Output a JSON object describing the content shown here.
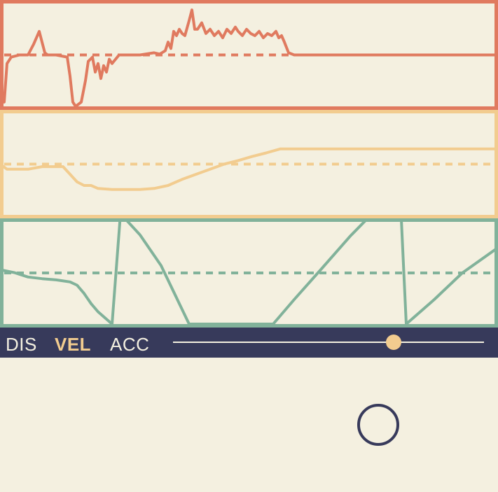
{
  "colors": {
    "background": "#f4f0e0",
    "acceleration": "#e07a5f",
    "velocity": "#f2cc8f",
    "displacement": "#81b29a",
    "toolbar": "#373a5b",
    "toolbar_text": "#f4f0e0",
    "active_text": "#f2cc8f"
  },
  "toolbar": {
    "modes": [
      "DIS",
      "VEL",
      "ACC"
    ],
    "active_mode": "VEL",
    "slider_value": 0.71
  },
  "play_button": {
    "icon": "circle-icon"
  },
  "chart_data": [
    {
      "type": "line",
      "series": [
        {
          "color": "#e07a5f",
          "x": [
            0,
            6,
            10,
            16,
            28,
            40,
            48,
            52,
            56,
            60,
            64,
            68,
            80,
            96,
            100,
            104,
            108,
            116,
            122,
            126,
            132,
            136,
            140,
            144,
            148,
            152,
            156,
            160,
            170,
            200,
            220,
            228,
            236,
            240,
            244,
            248,
            252,
            256,
            260,
            264,
            270,
            274,
            278,
            282,
            288,
            294,
            300,
            306,
            312,
            318,
            324,
            330,
            336,
            340,
            346,
            352,
            358,
            364,
            370,
            376,
            382,
            388,
            394,
            398,
            402,
            406,
            412,
            420,
            460,
            500,
            560,
            620,
            711
          ],
          "y": [
            -0.85,
            -1.1,
            -0.2,
            -0.05,
            0,
            0,
            0.25,
            0.4,
            0.55,
            0.3,
            0.05,
            0,
            0,
            -0.05,
            -0.5,
            -1.1,
            -1.2,
            -1.1,
            -0.6,
            -0.15,
            -0.05,
            -0.4,
            -0.2,
            -0.55,
            -0.25,
            -0.4,
            -0.1,
            -0.2,
            0,
            0,
            0.05,
            0.02,
            0.1,
            0.3,
            0.15,
            0.55,
            0.45,
            0.6,
            0.5,
            0.45,
            0.8,
            1.05,
            0.6,
            0.6,
            0.75,
            0.5,
            0.6,
            0.45,
            0.55,
            0.4,
            0.6,
            0.5,
            0.65,
            0.55,
            0.45,
            0.6,
            0.5,
            0.45,
            0.55,
            0.4,
            0.5,
            0.45,
            0.55,
            0.4,
            0.45,
            0.3,
            0.05,
            0,
            0,
            0,
            0,
            0,
            0
          ],
          "ylim": [
            -1.2,
            1.2
          ]
        }
      ]
    },
    {
      "type": "line",
      "series": [
        {
          "color": "#f2cc8f",
          "x": [
            0,
            10,
            40,
            60,
            90,
            100,
            110,
            120,
            130,
            140,
            160,
            180,
            200,
            220,
            240,
            260,
            280,
            300,
            320,
            340,
            360,
            380,
            400,
            420,
            500,
            600,
            711
          ],
          "y": [
            0,
            -0.1,
            -0.1,
            -0.05,
            -0.05,
            -0.2,
            -0.35,
            -0.42,
            -0.42,
            -0.48,
            -0.5,
            -0.5,
            -0.5,
            -0.48,
            -0.42,
            -0.3,
            -0.2,
            -0.1,
            0,
            0.07,
            0.15,
            0.22,
            0.3,
            0.3,
            0.3,
            0.3,
            0.3
          ],
          "ylim": [
            -1,
            1
          ]
        }
      ]
    },
    {
      "type": "line",
      "series": [
        {
          "color": "#81b29a",
          "x": [
            0,
            20,
            40,
            60,
            80,
            100,
            110,
            120,
            130,
            140,
            150,
            160,
            172,
            200,
            230,
            270,
            290,
            310,
            330,
            345,
            360,
            370,
            390,
            420,
            460,
            500,
            540,
            570,
            580,
            620,
            660,
            711
          ],
          "y": [
            0.08,
            0.01,
            -0.1,
            -0.14,
            -0.17,
            -0.22,
            -0.3,
            -0.5,
            -0.75,
            -0.95,
            -1.1,
            -1.25,
            1.45,
            0.93,
            0.18,
            -1.25,
            -1.25,
            -1.25,
            -1.25,
            -1.25,
            -1.25,
            -1.25,
            -1.25,
            -0.65,
            0.12,
            0.9,
            1.6,
            2.4,
            -1.25,
            -0.65,
            0,
            0.62
          ],
          "ylim": [
            -1.25,
            1.25
          ]
        }
      ]
    }
  ]
}
